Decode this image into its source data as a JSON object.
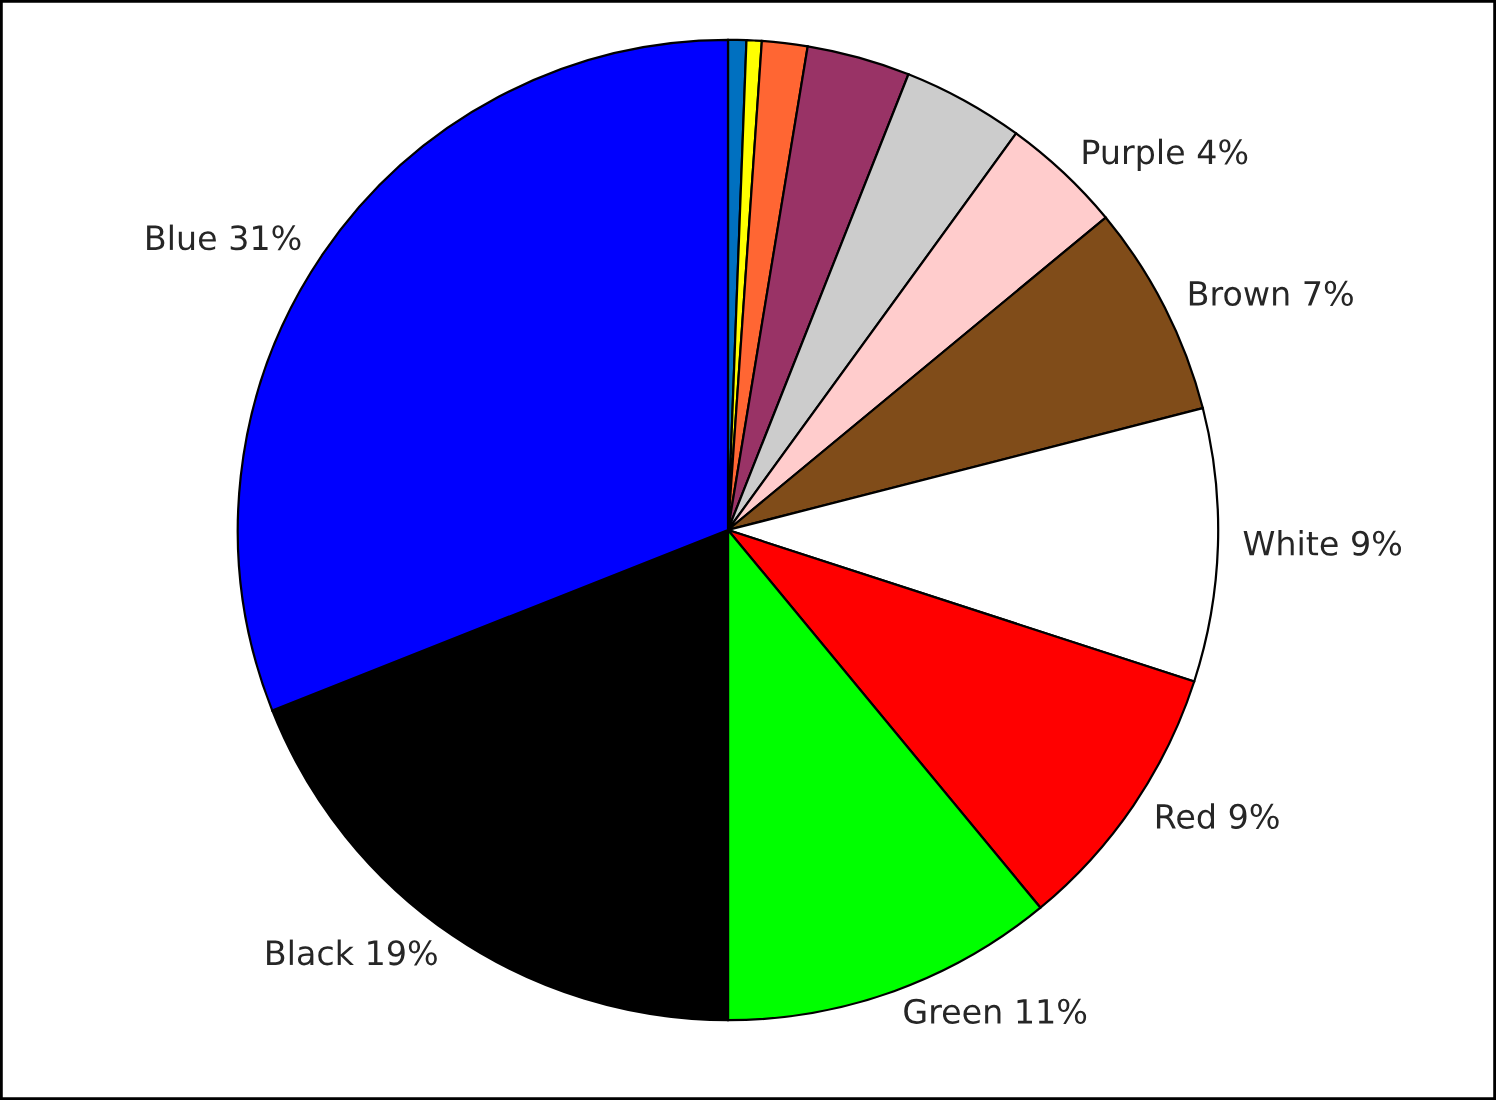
{
  "chart_data": {
    "type": "pie",
    "categories": [
      null,
      null,
      null,
      null,
      null,
      "Purple",
      "Brown",
      "White",
      "Red",
      "Green",
      "Black",
      "Blue"
    ],
    "values": [
      0.6,
      0.5,
      1.5,
      3.4,
      4.0,
      4,
      7,
      9,
      9,
      11,
      19,
      31
    ],
    "value_labels": [
      null,
      null,
      null,
      null,
      null,
      "4%",
      "7%",
      "9%",
      "9%",
      "11%",
      "19%",
      "31%"
    ],
    "colors": [
      "#0070c0",
      "#ffff00",
      "#ff6633",
      "#993366",
      "#cccccc",
      "#ffcccc",
      "#804c19",
      "#ffffff",
      "#ff0000",
      "#00ff00",
      "#000000",
      "#0000ff"
    ],
    "legend": false
  }
}
